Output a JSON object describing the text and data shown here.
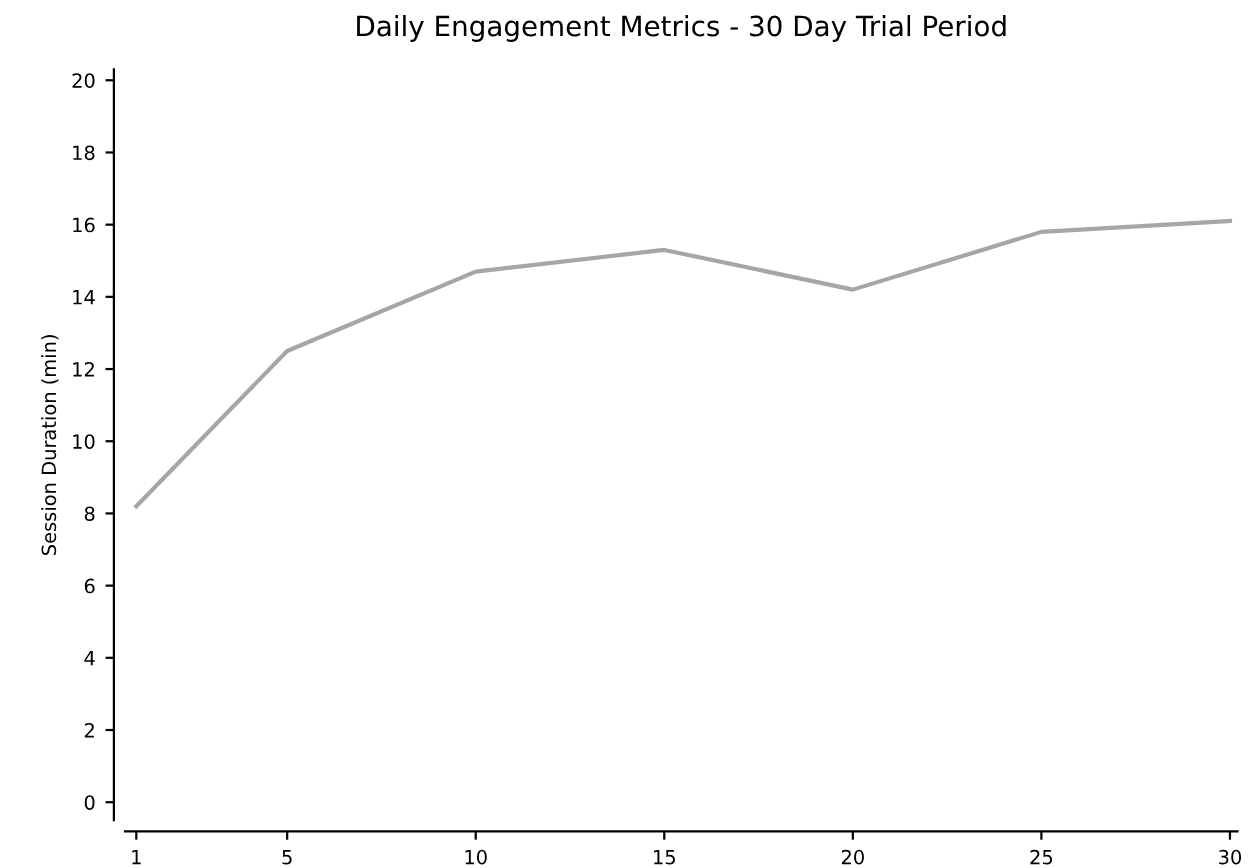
{
  "chart_data": {
    "type": "line",
    "title": "Daily Engagement Metrics - 30 Day Trial Period",
    "ylabel": "Session Duration (min)",
    "x": [
      1,
      5,
      10,
      15,
      20,
      25,
      30
    ],
    "series": [
      {
        "color": "#a6a6a6",
        "values": [
          8.2,
          12.5,
          14.7,
          15.3,
          14.2,
          15.8,
          16.1
        ]
      }
    ],
    "xlim": [
      0.7,
      30.2
    ],
    "xticks": [
      1,
      5,
      10,
      15,
      20,
      25,
      30
    ],
    "ylim": [
      -0.5,
      20.3
    ],
    "yticks": [
      0,
      2,
      4,
      6,
      8,
      10,
      12,
      14,
      16,
      18,
      20
    ],
    "grid": false,
    "legend": false,
    "marker": "none",
    "line_style": "solid"
  }
}
